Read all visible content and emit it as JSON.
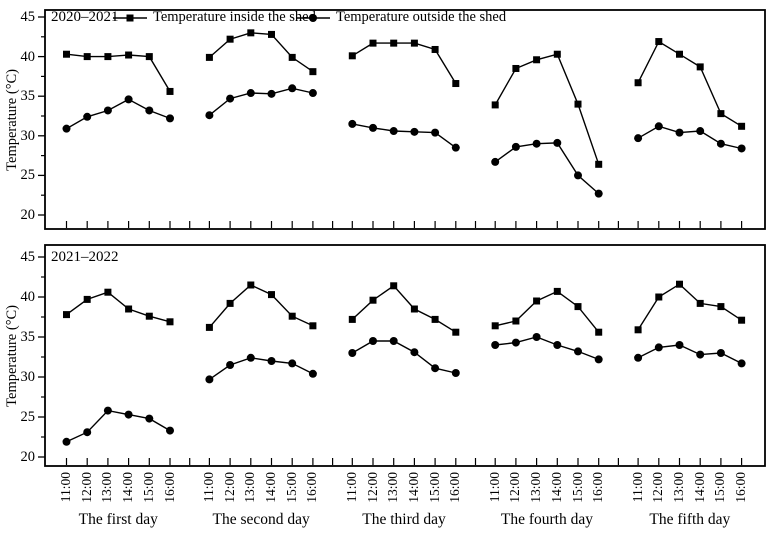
{
  "chart_data": {
    "type": "line",
    "color": "#000000",
    "ylabel": "Temperature (°C)",
    "yticks": [
      45,
      40,
      35,
      30,
      25,
      20
    ],
    "ytick_minor": [
      42.5,
      37.5,
      32.5,
      27.5,
      22.5
    ],
    "ylim": [
      18.3,
      45.9
    ],
    "grid": false,
    "legend_position": "top-inside",
    "legend": [
      {
        "label": "Temperature inside the shed",
        "marker": "square"
      },
      {
        "label": "Temperature outside the shed",
        "marker": "circle"
      }
    ],
    "times": [
      "11:00",
      "12:00",
      "13:00",
      "14:00",
      "15:00",
      "16:00"
    ],
    "day_labels": [
      "The first day",
      "The second day",
      "The third day",
      "The fourth day",
      "The fifth day"
    ],
    "panels": [
      {
        "label": "2020–2021",
        "ylabel": "Temperature (°C)",
        "series": [
          {
            "name": "Temperature inside the shed",
            "marker": "square",
            "days": [
              [
                40.3,
                40.0,
                40.0,
                40.2,
                40.0,
                35.6
              ],
              [
                39.9,
                42.2,
                43.0,
                42.8,
                39.9,
                38.1
              ],
              [
                40.1,
                41.7,
                41.7,
                41.7,
                40.9,
                36.6
              ],
              [
                33.9,
                38.5,
                39.6,
                40.3,
                34.0,
                26.4
              ],
              [
                36.7,
                41.9,
                40.3,
                38.7,
                32.8,
                31.2
              ]
            ]
          },
          {
            "name": "Temperature outside the shed",
            "marker": "circle",
            "days": [
              [
                30.9,
                32.4,
                33.2,
                34.6,
                33.2,
                32.2
              ],
              [
                32.6,
                34.7,
                35.4,
                35.3,
                36.0,
                35.4
              ],
              [
                31.5,
                31.0,
                30.6,
                30.5,
                30.4,
                28.5
              ],
              [
                26.7,
                28.6,
                29.0,
                29.1,
                25.0,
                22.7
              ],
              [
                29.7,
                31.2,
                30.4,
                30.6,
                29.0,
                28.4
              ]
            ]
          }
        ]
      },
      {
        "label": "2021–2022",
        "ylabel": "Temperature (°C)",
        "series": [
          {
            "name": "Temperature inside the shed",
            "marker": "square",
            "days": [
              [
                37.8,
                39.7,
                40.6,
                38.5,
                37.6,
                36.9
              ],
              [
                36.2,
                39.2,
                41.5,
                40.3,
                37.6,
                36.4
              ],
              [
                37.2,
                39.6,
                41.4,
                38.5,
                37.2,
                35.6
              ],
              [
                36.4,
                37.0,
                39.5,
                40.7,
                38.8,
                35.6
              ],
              [
                35.9,
                40.0,
                41.6,
                39.2,
                38.8,
                37.1
              ]
            ]
          },
          {
            "name": "Temperature outside the shed",
            "marker": "circle",
            "days": [
              [
                21.9,
                23.1,
                25.8,
                25.3,
                24.8,
                23.3
              ],
              [
                29.7,
                31.5,
                32.4,
                32.0,
                31.7,
                30.4
              ],
              [
                33.0,
                34.5,
                34.5,
                33.1,
                31.1,
                30.5
              ],
              [
                34.0,
                34.3,
                35.0,
                34.0,
                33.2,
                32.2
              ],
              [
                32.4,
                33.7,
                34.0,
                32.8,
                33.0,
                31.7
              ]
            ]
          }
        ]
      }
    ]
  }
}
